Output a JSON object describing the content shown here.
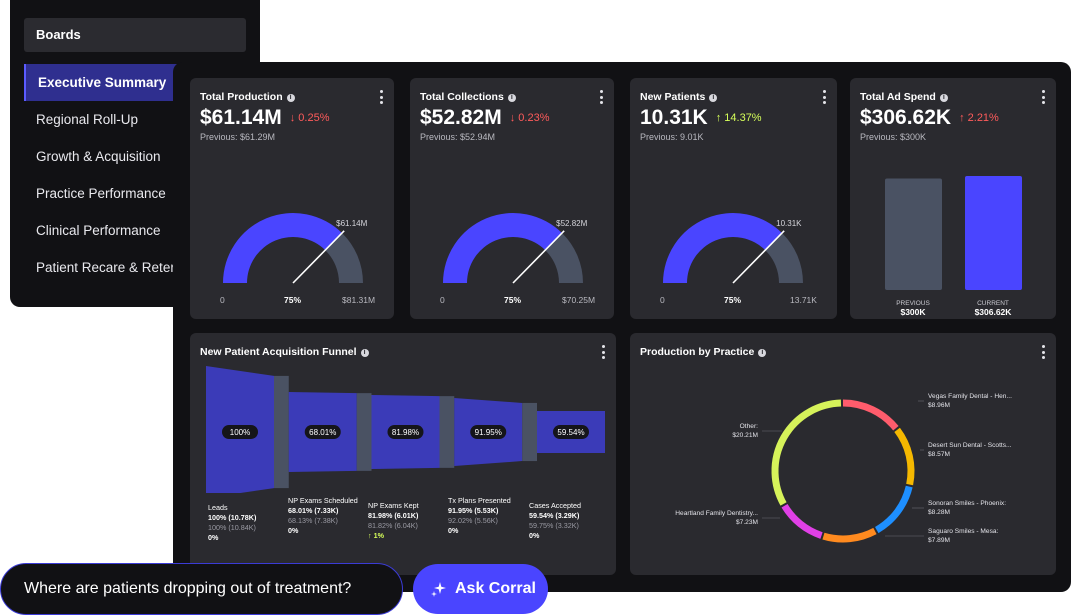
{
  "sidebar": {
    "title": "Boards",
    "items": [
      {
        "label": "Executive Summary",
        "active": true
      },
      {
        "label": "Regional Roll-Up",
        "active": false
      },
      {
        "label": "Growth & Acquisition",
        "active": false
      },
      {
        "label": "Practice Performance",
        "active": false
      },
      {
        "label": "Clinical Performance",
        "active": false
      },
      {
        "label": "Patient Recare & Retent",
        "active": false
      }
    ]
  },
  "kpis": [
    {
      "title": "Total Production",
      "value": "$61.14M",
      "delta": "0.25%",
      "direction": "down",
      "previous": "Previous: $61.29M",
      "gauge_value_label": "$61.14M",
      "min": "0",
      "mid": "75%",
      "max": "$81.31M",
      "fraction": 0.75
    },
    {
      "title": "Total Collections",
      "value": "$52.82M",
      "delta": "0.23%",
      "direction": "down",
      "previous": "Previous: $52.94M",
      "gauge_value_label": "$52.82M",
      "min": "0",
      "mid": "75%",
      "max": "$70.25M",
      "fraction": 0.75
    },
    {
      "title": "New Patients",
      "value": "10.31K",
      "delta": "14.37%",
      "direction": "up",
      "previous": "Previous: 9.01K",
      "gauge_value_label": "10.31K",
      "min": "0",
      "mid": "75%",
      "max": "13.71K",
      "fraction": 0.75
    }
  ],
  "ad_spend": {
    "title": "Total Ad Spend",
    "value": "$306.62K",
    "delta": "2.21%",
    "direction": "up",
    "previous": "Previous: $300K",
    "bars": [
      {
        "label": "PREVIOUS",
        "value_label": "$300K",
        "value": 300,
        "color": "#4a5263"
      },
      {
        "label": "CURRENT",
        "value_label": "$306.62K",
        "value": 306.62,
        "color": "#4a45ff"
      }
    ]
  },
  "funnel": {
    "title": "New Patient Acquisition Funnel",
    "stages": [
      {
        "pct": "100%",
        "name": "Leads",
        "line1": "100% (10.78K)",
        "line2": "100% (10.84K)",
        "change": "0%",
        "change_dir": "flat"
      },
      {
        "pct": "68.01%",
        "name": "NP Exams Scheduled",
        "line1": "68.01% (7.33K)",
        "line2": "68.13% (7.38K)",
        "change": "0%",
        "change_dir": "flat"
      },
      {
        "pct": "81.98%",
        "name": "NP Exams Kept",
        "line1": "81.98% (6.01K)",
        "line2": "81.82% (6.04K)",
        "change": "1%",
        "change_dir": "up"
      },
      {
        "pct": "91.95%",
        "name": "Tx Plans Presented",
        "line1": "91.95% (5.53K)",
        "line2": "92.02% (5.56K)",
        "change": "0%",
        "change_dir": "flat"
      },
      {
        "pct": "59.54%",
        "name": "Cases Accepted",
        "line1": "59.54% (3.29K)",
        "line2": "59.75% (3.32K)",
        "change": "0%",
        "change_dir": "flat"
      }
    ]
  },
  "production_by_practice": {
    "title": "Production by Practice",
    "chart_data": {
      "type": "pie",
      "categories": [
        "Vegas Family Dental - Hen...",
        "Desert Sun Dental - Scotts...",
        "Sonoran Smiles - Phoenix:",
        "Saguaro Smiles - Mesa:",
        "Heartland Family Dentistry...",
        "Other:"
      ],
      "values": [
        8.96,
        8.57,
        8.28,
        7.89,
        7.23,
        20.21
      ],
      "value_labels": [
        "$8.96M",
        "$8.57M",
        "$8.28M",
        "$7.89M",
        "$7.23M",
        "$20.21M"
      ],
      "colors": [
        "#ff5c6c",
        "#f5b800",
        "#1e8fff",
        "#ff8a1f",
        "#e040e6",
        "#d6f25a"
      ]
    }
  },
  "ask": {
    "question": "Where are patients dropping out of treatment?",
    "button_label": "Ask Corral"
  },
  "colors": {
    "accent": "#4a45ff",
    "gauge_track": "#4a5263",
    "down": "#ff5b5b",
    "up": "#d6ff5a"
  }
}
